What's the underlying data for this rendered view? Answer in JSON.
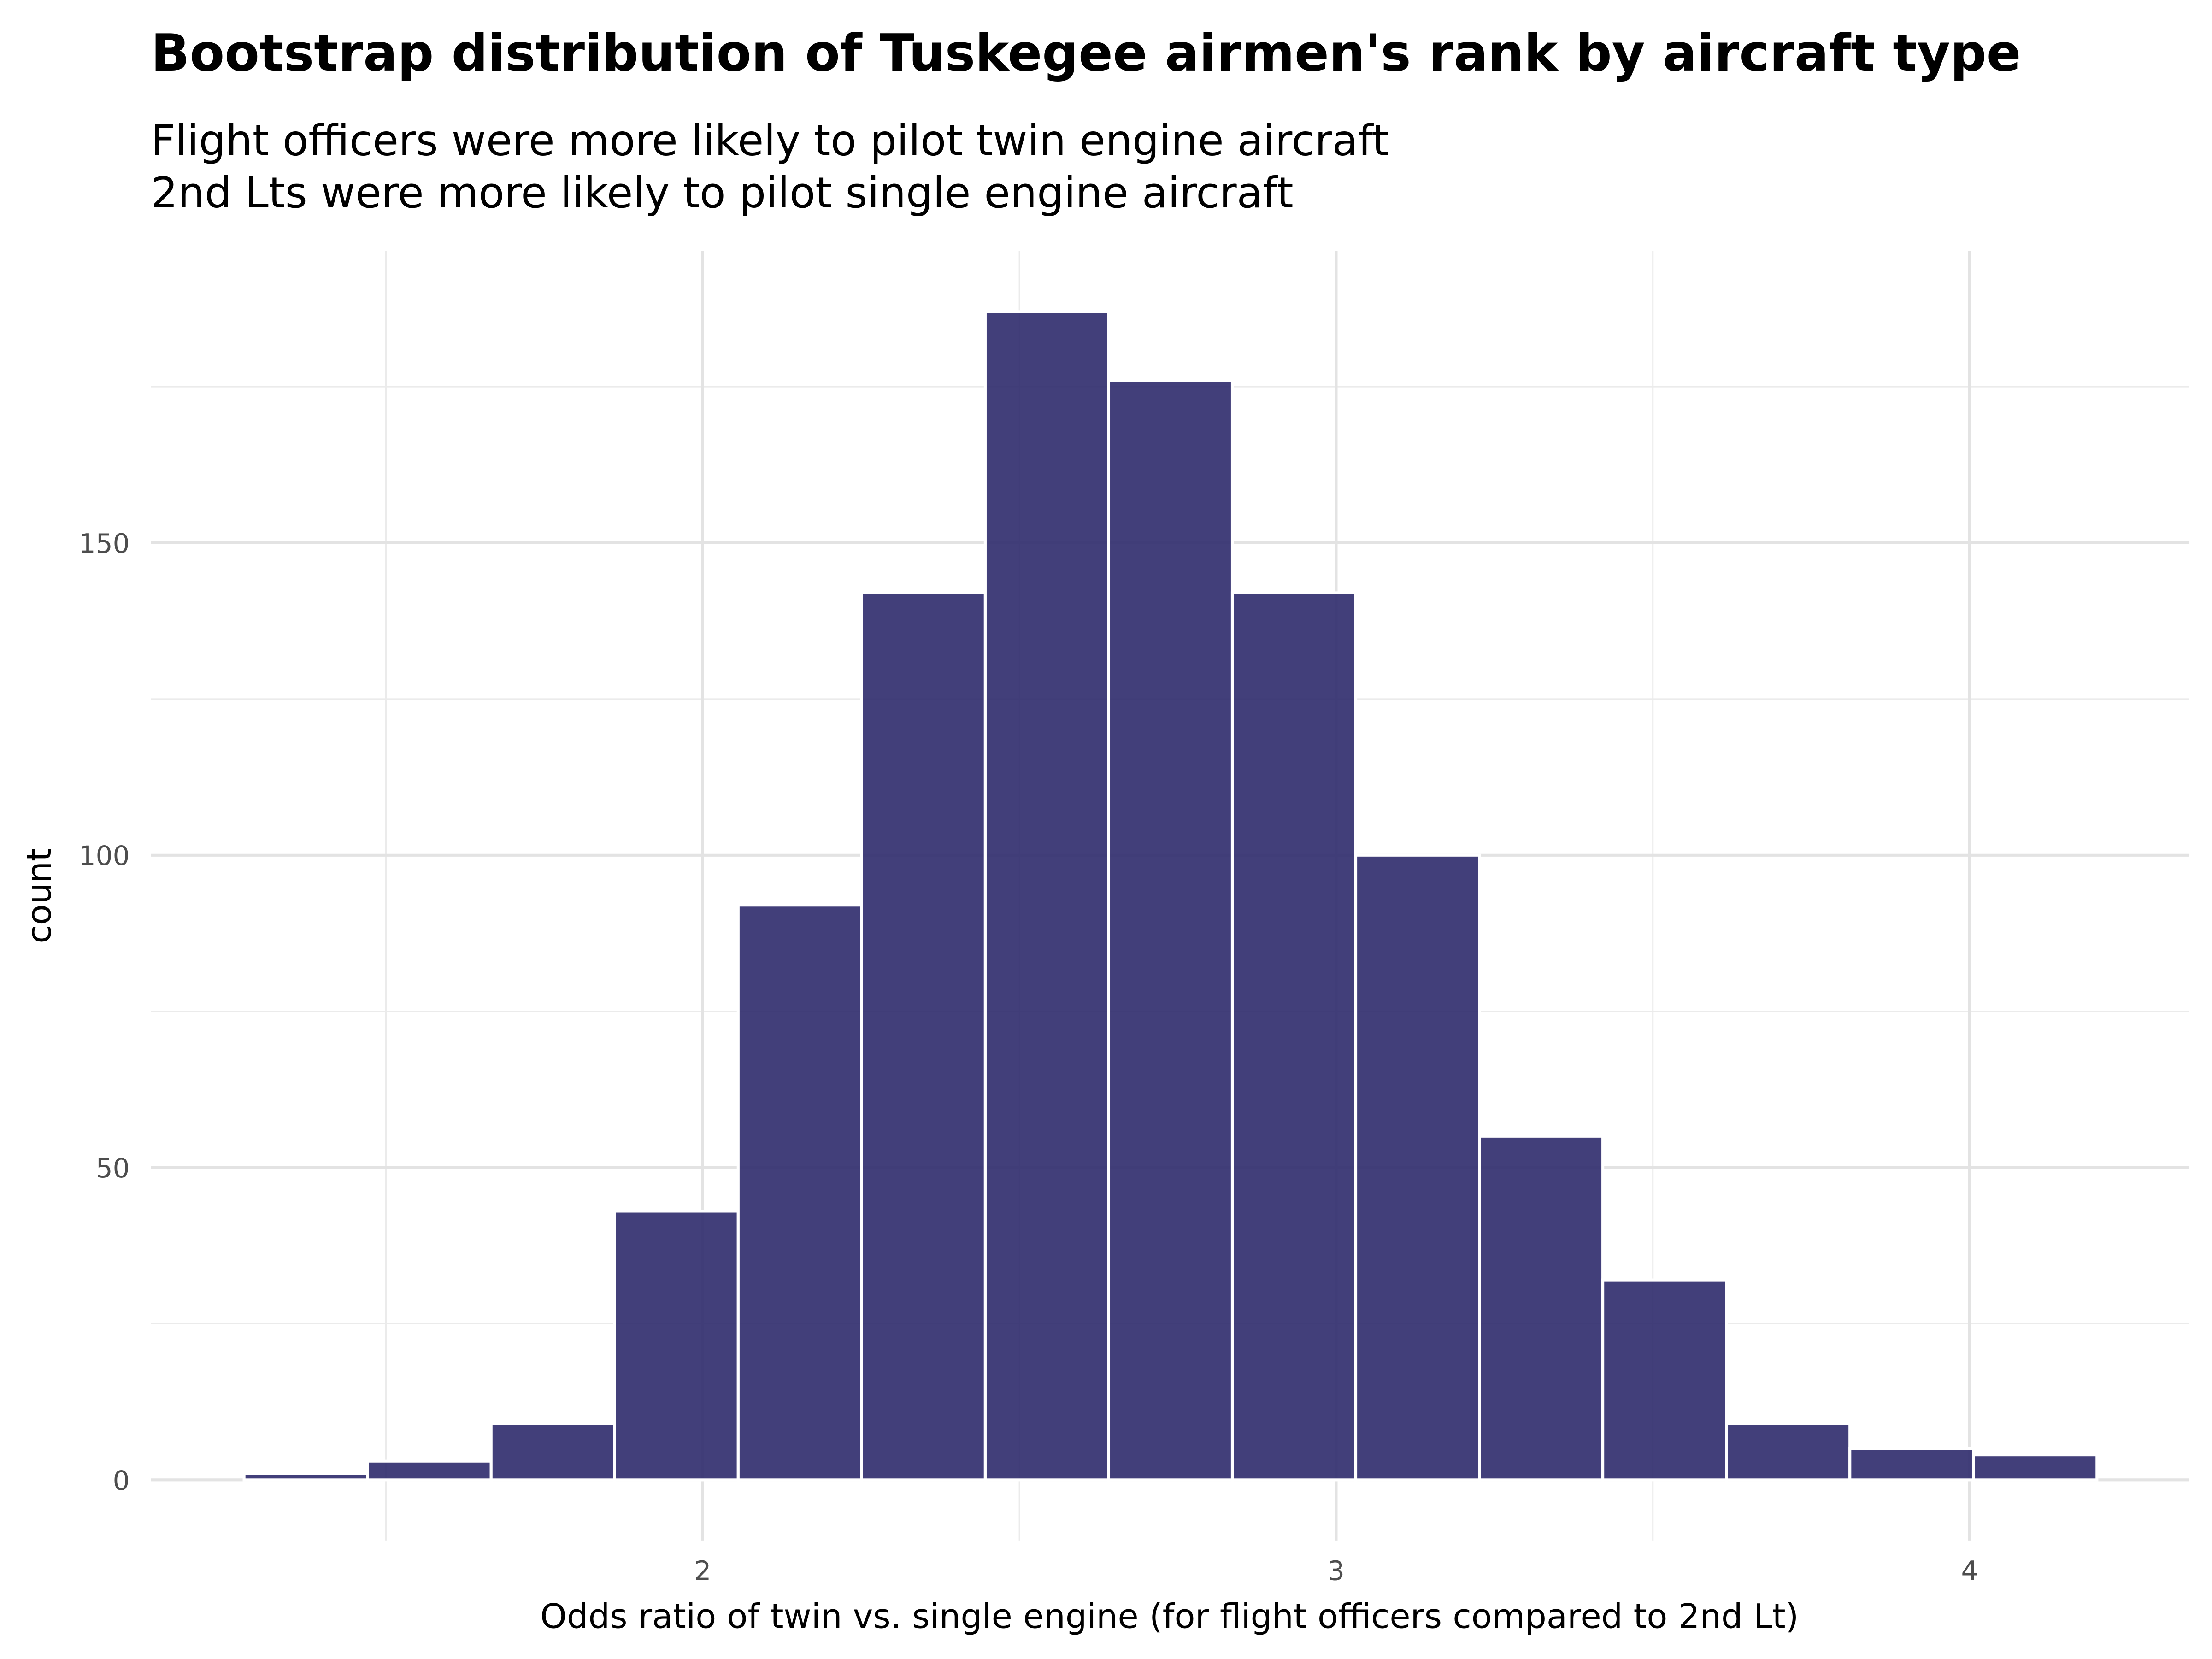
{
  "chart_data": {
    "type": "histogram",
    "title": "Bootstrap distribution of Tuskegee airmen's rank by aircraft type",
    "subtitle": [
      "Flight officers were more likely to pilot twin engine aircraft",
      "2nd Lts were more likely to pilot single engine aircraft"
    ],
    "x_label": "Odds ratio of twin vs. single engine (for flight officers compared to 2nd Lt)",
    "y_label": "count",
    "bins": [
      1.276,
      1.471,
      1.666,
      1.861,
      2.056,
      2.251,
      2.446,
      2.641,
      2.836,
      3.031,
      3.226,
      3.421,
      3.616,
      3.811,
      4.006,
      4.201
    ],
    "values": [
      1,
      3,
      9,
      43,
      92,
      142,
      187,
      176,
      142,
      100,
      55,
      32,
      9,
      5,
      4
    ],
    "color": "#2e2a6b",
    "xlim": [
      1.129,
      4.347
    ],
    "ylim": [
      -9.7,
      196.7
    ],
    "xticks": [
      2,
      3,
      4
    ],
    "yticks": [
      0,
      50,
      100,
      150
    ],
    "x_minor_grid": [
      1.5,
      2.5,
      3.5
    ],
    "y_minor_grid": [
      25,
      75,
      125,
      175
    ],
    "grid": true
  }
}
